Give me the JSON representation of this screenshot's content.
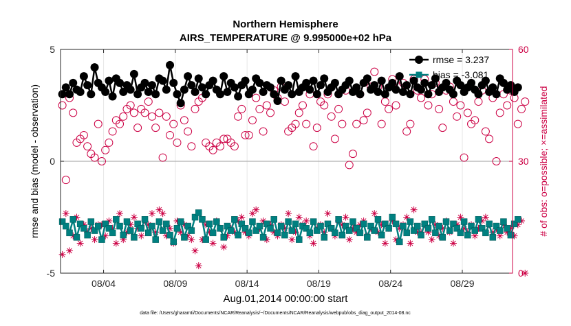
{
  "chart_data": {
    "type": "line",
    "title": [
      "Northern Hemisphere",
      "AIRS_TEMPERATURE @ 9.995000e+02 hPa"
    ],
    "xlabel": "Aug.01,2014 00:00:00 start",
    "ylabel_left": "rmse and bias (model - observation)",
    "ylabel_right": "# of obs: o=possible; ×=assimilated",
    "footnote": "data file: /Users/gharamti/Documents/NCAR/Reanalysis/~/Documents/NCAR/Reanalysis/webpub/obs_diag_output_2014-08.nc",
    "x_range_days": [
      0,
      31.5
    ],
    "x_ticks": [
      {
        "day": 3,
        "label": "08/04"
      },
      {
        "day": 8,
        "label": "08/09"
      },
      {
        "day": 13,
        "label": "08/14"
      },
      {
        "day": 18,
        "label": "08/19"
      },
      {
        "day": 23,
        "label": "08/24"
      },
      {
        "day": 28,
        "label": "08/29"
      }
    ],
    "ylim_left": [
      -5,
      5
    ],
    "yticks_left": [
      {
        "v": -5,
        "label": "-5"
      },
      {
        "v": 0,
        "label": "0"
      },
      {
        "v": 5,
        "label": "5"
      }
    ],
    "ylim_right": [
      0,
      60
    ],
    "yticks_right": [
      {
        "v": 0,
        "label": "0"
      },
      {
        "v": 30,
        "label": "30"
      },
      {
        "v": 60,
        "label": "60"
      }
    ],
    "grid": true,
    "legend": {
      "placement": "top-right",
      "entries": [
        {
          "label": "rmse = 3.237",
          "color": "#000000"
        },
        {
          "label": "bias = -3.081",
          "color": "#008080"
        }
      ]
    },
    "series": [
      {
        "name": "rmse",
        "axis": "left",
        "color": "#000000",
        "step_days": 0.25,
        "values": [
          3.0,
          3.3,
          3.0,
          3.5,
          3.2,
          3.1,
          3.8,
          3.4,
          3.0,
          4.2,
          3.5,
          3.3,
          3.1,
          3.6,
          2.9,
          3.7,
          3.5,
          3.1,
          3.4,
          3.2,
          3.9,
          3.0,
          3.3,
          3.5,
          3.1,
          3.4,
          3.0,
          3.7,
          3.6,
          3.2,
          4.3,
          3.5,
          3.0,
          2.6,
          3.2,
          3.8,
          3.4,
          3.1,
          3.7,
          3.3,
          3.0,
          3.4,
          3.6,
          3.2,
          3.0,
          3.8,
          3.1,
          3.5,
          3.3,
          2.9,
          3.4,
          3.6,
          3.0,
          3.2,
          3.7,
          3.5,
          3.1,
          3.4,
          3.3,
          3.0,
          2.7,
          3.6,
          3.2,
          3.4,
          3.0,
          3.8,
          3.1,
          3.3,
          3.5,
          3.2,
          3.6,
          3.0,
          3.4,
          3.7,
          3.1,
          3.3,
          3.5,
          3.0,
          3.2,
          3.4,
          3.6,
          3.1,
          3.3,
          3.0,
          3.5,
          3.7,
          3.2,
          3.4,
          3.1,
          3.6,
          3.0,
          3.3,
          3.5,
          3.2,
          3.8,
          3.1,
          3.4,
          3.0,
          3.6,
          3.3,
          3.2,
          3.5,
          3.0,
          3.4,
          3.7,
          3.1,
          3.3,
          3.5,
          3.2,
          3.0,
          3.6,
          3.4,
          3.1,
          3.3,
          3.5,
          3.2,
          3.0,
          3.4,
          3.6,
          3.1,
          3.3,
          3.0,
          3.7,
          3.5,
          3.2,
          3.4,
          3.1,
          3.3
        ]
      },
      {
        "name": "bias",
        "axis": "left",
        "color": "#008080",
        "step_days": 0.25,
        "values": [
          -2.7,
          -2.9,
          -3.2,
          -2.6,
          -3.4,
          -2.8,
          -3.0,
          -3.3,
          -2.7,
          -3.1,
          -2.9,
          -3.5,
          -2.8,
          -3.0,
          -3.2,
          -2.6,
          -2.9,
          -3.3,
          -2.7,
          -3.1,
          -3.4,
          -2.8,
          -3.0,
          -2.6,
          -3.2,
          -2.9,
          -3.5,
          -2.7,
          -3.1,
          -2.8,
          -3.3,
          -3.6,
          -3.0,
          -2.7,
          -3.4,
          -2.9,
          -3.1,
          -2.5,
          -2.3,
          -2.6,
          -3.5,
          -2.8,
          -3.2,
          -2.7,
          -3.0,
          -3.4,
          -2.9,
          -3.1,
          -2.6,
          -3.3,
          -2.8,
          -3.0,
          -3.2,
          -2.7,
          -3.1,
          -2.9,
          -3.4,
          -2.8,
          -3.0,
          -2.6,
          -3.2,
          -2.9,
          -3.3,
          -2.7,
          -3.1,
          -2.8,
          -3.5,
          -2.9,
          -3.0,
          -3.2,
          -2.7,
          -3.1,
          -2.9,
          -3.4,
          -2.8,
          -3.0,
          -3.2,
          -2.6,
          -3.3,
          -2.9,
          -3.1,
          -2.7,
          -3.0,
          -3.2,
          -2.8,
          -3.4,
          -2.9,
          -3.1,
          -2.6,
          -3.3,
          -2.8,
          -3.0,
          -2.5,
          -2.8,
          -3.6,
          -2.9,
          -3.2,
          -2.7,
          -3.1,
          -2.9,
          -3.3,
          -2.8,
          -3.0,
          -2.6,
          -3.2,
          -2.9,
          -3.4,
          -2.7,
          -3.1,
          -2.8,
          -3.0,
          -3.2,
          -2.7,
          -3.3,
          -2.9,
          -3.1,
          -2.6,
          -3.0,
          -3.2,
          -2.8,
          -3.4,
          -2.9,
          -3.1,
          -2.7,
          -3.0,
          -3.3,
          -2.8,
          -2.6
        ]
      },
      {
        "name": "possible",
        "axis": "right",
        "color": "#cc0044",
        "marker": "circle",
        "step_days": 0.25,
        "values": [
          45,
          25,
          47,
          43,
          35,
          36,
          37,
          34,
          32,
          31,
          40,
          30,
          33,
          35,
          38,
          41,
          40,
          42,
          44,
          45,
          43,
          39,
          44,
          43,
          46,
          42,
          39,
          43,
          31,
          42,
          37,
          40,
          35,
          45,
          41,
          38,
          34,
          44,
          46,
          47,
          35,
          34,
          33,
          35,
          34,
          36,
          36,
          35,
          34,
          42,
          44,
          37,
          37,
          41,
          47,
          44,
          38,
          45,
          43,
          49,
          47,
          50,
          46,
          38,
          39,
          40,
          43,
          45,
          40,
          48,
          34,
          39,
          46,
          45,
          48,
          42,
          36,
          44,
          40,
          49,
          29,
          32,
          40,
          48,
          41,
          43,
          50,
          54,
          50,
          40,
          46,
          44,
          52,
          45,
          50,
          51,
          38,
          40,
          52,
          49,
          47,
          52,
          45,
          48,
          51,
          44,
          39,
          49,
          50,
          46,
          42,
          45,
          31,
          43,
          40,
          41,
          46,
          49,
          38,
          36,
          47,
          30,
          43,
          48,
          45,
          49,
          47,
          40,
          44,
          46
        ]
      },
      {
        "name": "assimilated",
        "axis": "right",
        "color": "#cc0044",
        "marker": "asterisk",
        "step_days": 0.25,
        "values": [
          5,
          16,
          6,
          10,
          15,
          8,
          13,
          11,
          12,
          9,
          13,
          13,
          10,
          14,
          12,
          8,
          16,
          9,
          11,
          13,
          15,
          12,
          10,
          14,
          13,
          16,
          11,
          17,
          16,
          10,
          12,
          8,
          14,
          11,
          13,
          10,
          9,
          6,
          2,
          9,
          13,
          11,
          8,
          14,
          12,
          7,
          10,
          12,
          11,
          14,
          15,
          11,
          10,
          16,
          17,
          12,
          14,
          9,
          13,
          11,
          10,
          13,
          12,
          16,
          9,
          11,
          15,
          13,
          14,
          10,
          8,
          12,
          13,
          11,
          16,
          12,
          10,
          14,
          13,
          15,
          9,
          12,
          11,
          13,
          14,
          10,
          12,
          16,
          11,
          13,
          8,
          12,
          14,
          9,
          12,
          13,
          15,
          8,
          17,
          11,
          11,
          13,
          11,
          9,
          13,
          10,
          12,
          14,
          11,
          8,
          13,
          15,
          12,
          11,
          13,
          10,
          12,
          14,
          15,
          13,
          11,
          12,
          10,
          13,
          11,
          12,
          10,
          13,
          14,
          0
        ]
      }
    ]
  }
}
